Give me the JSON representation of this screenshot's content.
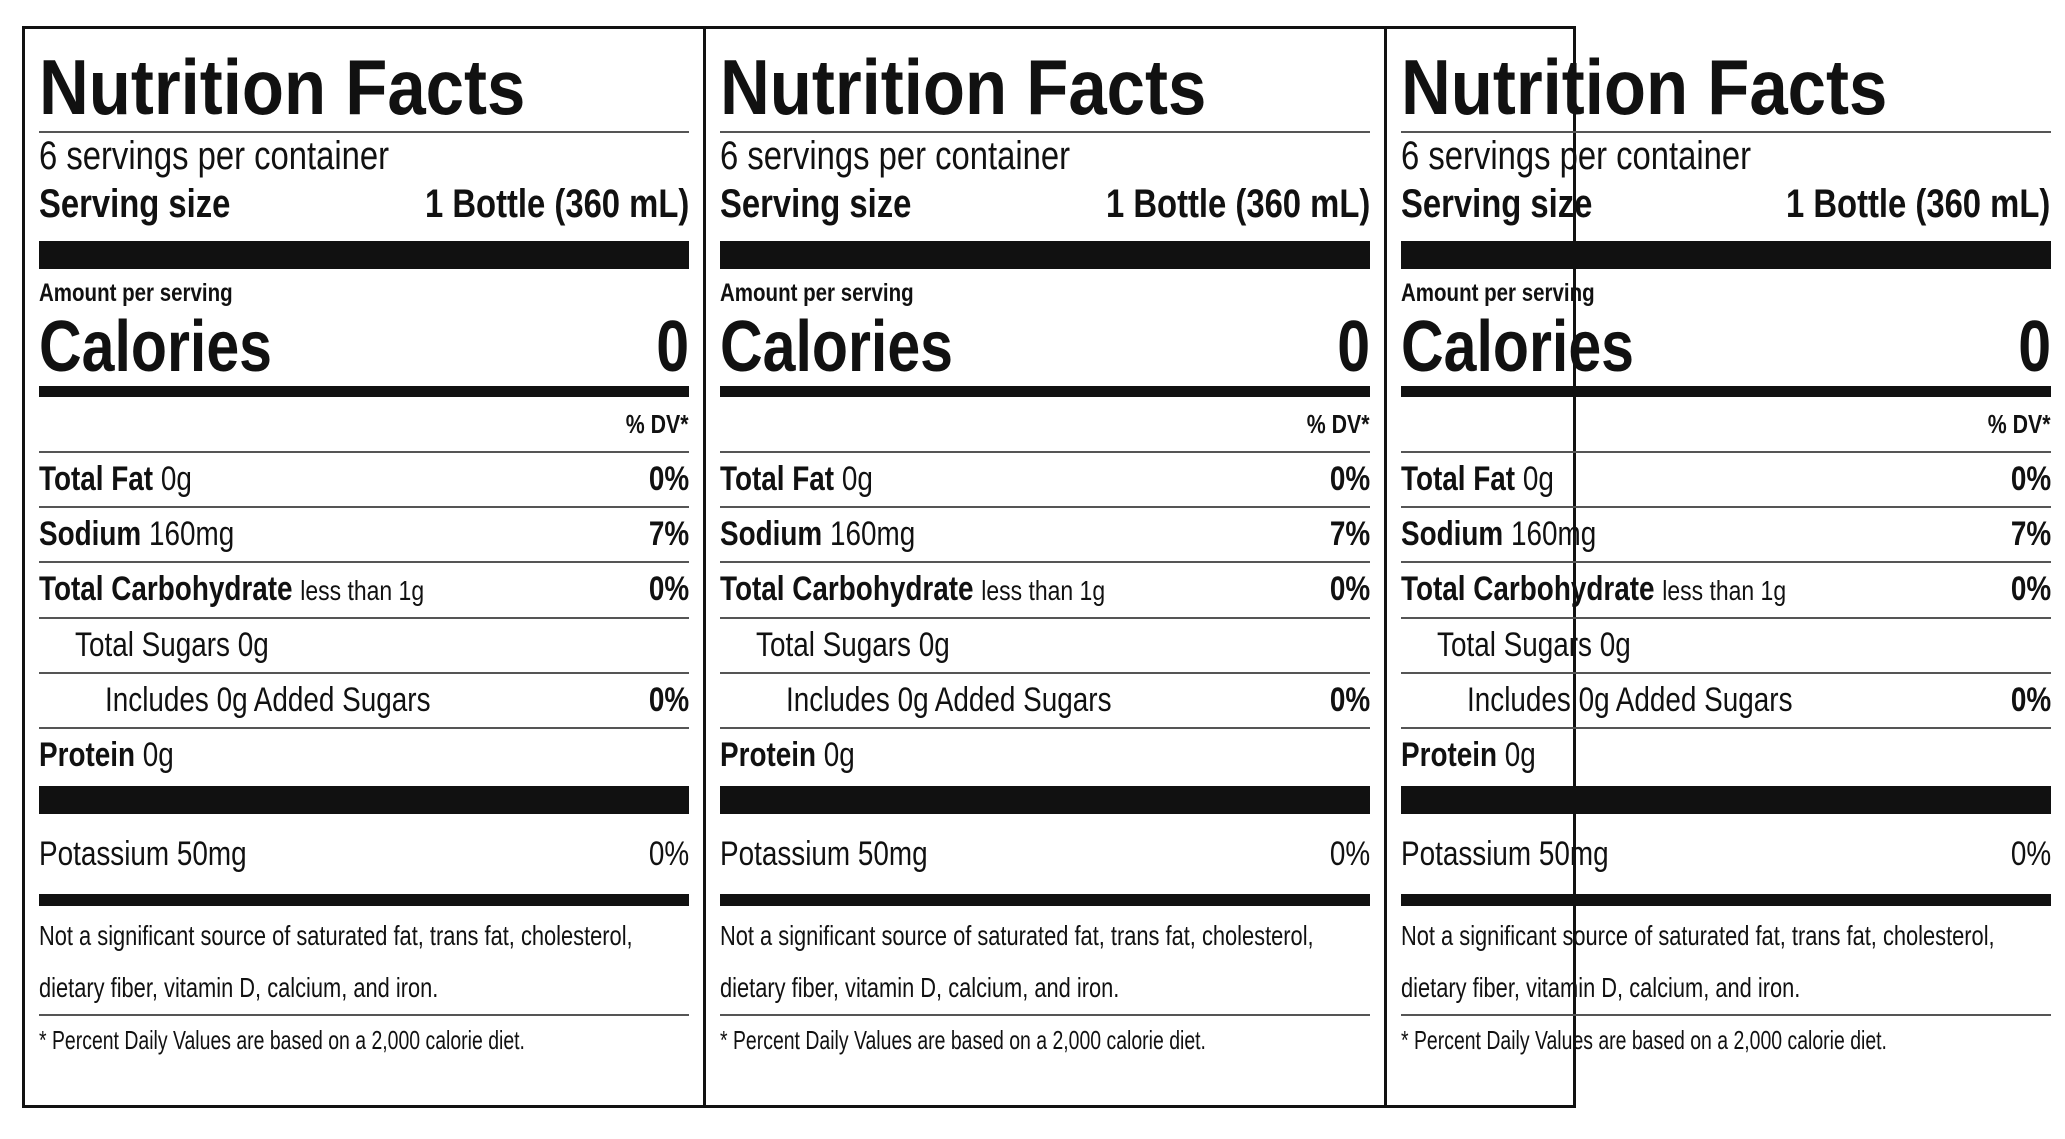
{
  "panels": [
    {
      "title": "Nutrition Facts",
      "servings": "6 servings per container",
      "serving_size_label": "Serving size",
      "serving_size_value": "1 Bottle (360 mL)",
      "amount_label": "Amount per serving",
      "calories_label": "Calories",
      "calories_value": "0",
      "dv_header": "% DV*",
      "nutrients": [
        {
          "name": "Total Fat",
          "amount": "0g",
          "dv": "0%"
        },
        {
          "name": "Sodium",
          "amount": "160mg",
          "dv": "7%"
        },
        {
          "name": "Total Carbohydrate",
          "amount": "less than 1g",
          "dv": "0%"
        },
        {
          "name": "Total Sugars",
          "amount": "0g"
        },
        {
          "name": "Includes 0g Added Sugars",
          "dv": "0%"
        },
        {
          "name": "Protein",
          "amount": "0g"
        }
      ],
      "potassium": {
        "name": "Potassium",
        "amount": "50mg",
        "dv": "0%"
      },
      "footnote_1": "Not a significant source of saturated fat, trans fat, cholesterol, dietary fiber, vitamin D, calcium, and iron.",
      "footnote_2": "* Percent Daily Values are based on a 2,000 calorie diet."
    },
    {
      "title": "Nutrition Facts",
      "servings": "6 servings per container",
      "serving_size_label": "Serving size",
      "serving_size_value": "1 Bottle (360 mL)",
      "amount_label": "Amount per serving",
      "calories_label": "Calories",
      "calories_value": "0",
      "dv_header": "% DV*",
      "nutrients": [
        {
          "name": "Total Fat",
          "amount": "0g",
          "dv": "0%"
        },
        {
          "name": "Sodium",
          "amount": "160mg",
          "dv": "7%"
        },
        {
          "name": "Total Carbohydrate",
          "amount": "less than 1g",
          "dv": "0%"
        },
        {
          "name": "Total Sugars",
          "amount": "0g"
        },
        {
          "name": "Includes 0g Added Sugars",
          "dv": "0%"
        },
        {
          "name": "Protein",
          "amount": "0g"
        }
      ],
      "potassium": {
        "name": "Potassium",
        "amount": "50mg",
        "dv": "0%"
      },
      "footnote_1": "Not a significant source of saturated fat, trans fat, cholesterol, dietary fiber, vitamin D, calcium, and iron.",
      "footnote_2": "* Percent Daily Values are based on a 2,000 calorie diet."
    },
    {
      "title": "Nutrition Facts",
      "servings": "6 servings per container",
      "serving_size_label": "Serving size",
      "serving_size_value": "1 Bottle (360 mL)",
      "amount_label": "Amount per serving",
      "calories_label": "Calories",
      "calories_value": "0",
      "dv_header": "% DV*",
      "nutrients": [
        {
          "name": "Total Fat",
          "amount": "0g",
          "dv": "0%"
        },
        {
          "name": "Sodium",
          "amount": "160mg",
          "dv": "7%"
        },
        {
          "name": "Total Carbohydrate",
          "amount": "less than 1g",
          "dv": "0%"
        },
        {
          "name": "Total Sugars",
          "amount": "0g"
        },
        {
          "name": "Includes 0g Added Sugars",
          "dv": "0%"
        },
        {
          "name": "Protein",
          "amount": "0g"
        }
      ],
      "potassium": {
        "name": "Potassium",
        "amount": "50mg",
        "dv": "0%"
      },
      "footnote_1": "Not a significant source of saturated fat, trans fat, cholesterol, dietary fiber, vitamin D, calcium, and iron.",
      "footnote_2": "* Percent Daily Values are based on a 2,000 calorie diet."
    }
  ]
}
